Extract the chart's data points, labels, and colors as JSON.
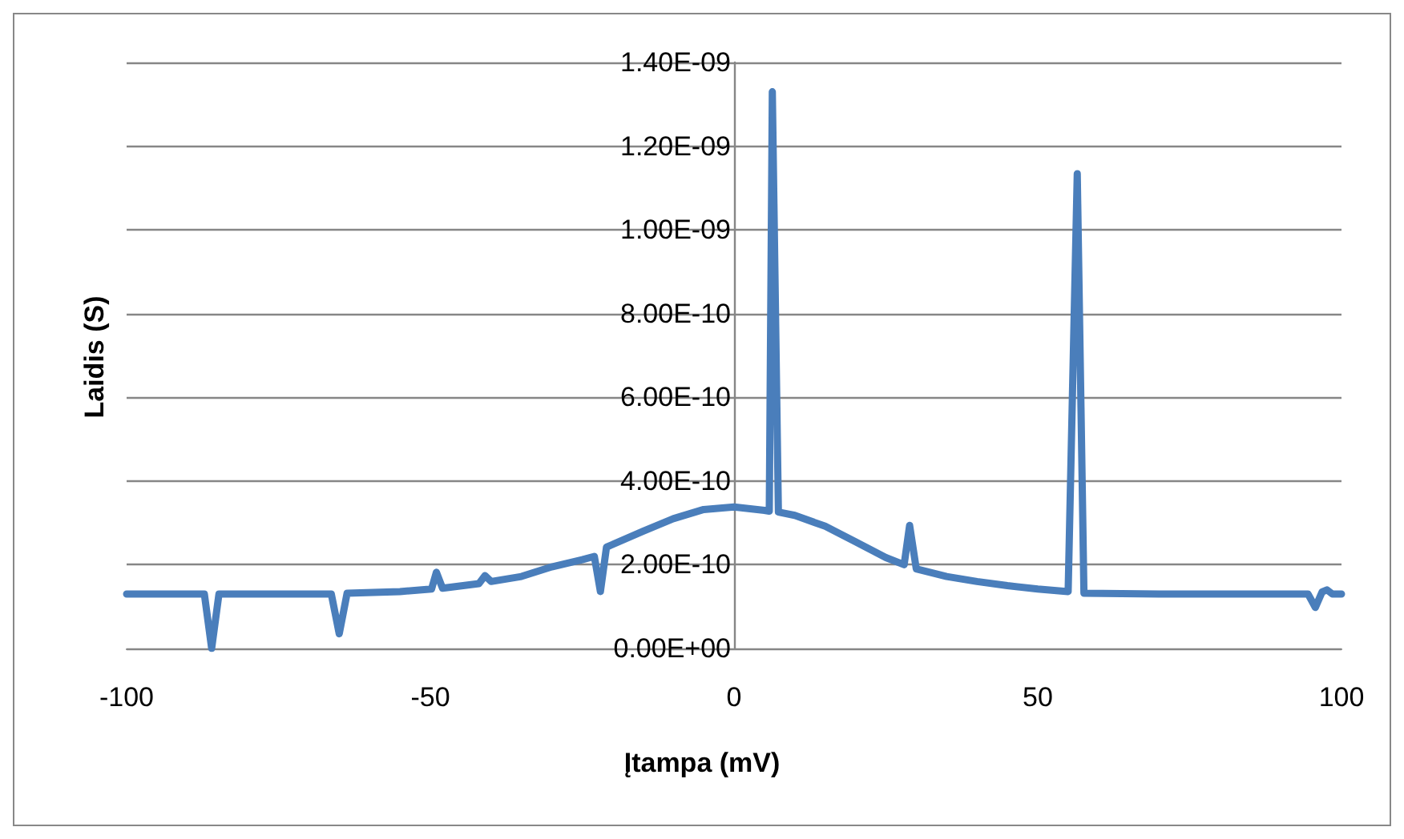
{
  "chart_data": {
    "type": "line",
    "xlabel": "Įtampa (mV)",
    "ylabel": "Laidis (S)",
    "xlim": [
      -100,
      100
    ],
    "xticks": [
      -100,
      -50,
      0,
      50,
      100
    ],
    "ylim": [
      0,
      1.4e-09
    ],
    "yticks": [
      {
        "value": 0,
        "label": "0.00E+00"
      },
      {
        "value": 2e-10,
        "label": "2.00E-10"
      },
      {
        "value": 4e-10,
        "label": "4.00E-10"
      },
      {
        "value": 6e-10,
        "label": "6.00E-10"
      },
      {
        "value": 8e-10,
        "label": "8.00E-10"
      },
      {
        "value": 1e-09,
        "label": "1.00E-09"
      },
      {
        "value": 1.2e-09,
        "label": "1.20E-09"
      },
      {
        "value": 1.4e-09,
        "label": "1.40E-09"
      }
    ],
    "grid": "y",
    "marker": "none",
    "line_style": "solid",
    "series": [
      {
        "color": "#4a7ebb",
        "x": [
          -100,
          -87.2,
          -86,
          -84.8,
          -66.3,
          -65,
          -63.7,
          -55,
          -49.8,
          -49,
          -48,
          -42,
          -41,
          -40,
          -35,
          -30,
          -25,
          -23,
          -22,
          -21,
          -15,
          -10,
          -5,
          0,
          5,
          5.8,
          6.3,
          7.3,
          10,
          15,
          20,
          25,
          28,
          28.9,
          30,
          35,
          40,
          45,
          50,
          55,
          56.5,
          57.6,
          70,
          80,
          94.5,
          95.7,
          96.8,
          97.6,
          98.5,
          100
        ],
        "values": [
          1.3e-10,
          1.3e-10,
          0,
          1.3e-10,
          1.3e-10,
          3.5e-11,
          1.32e-10,
          1.36e-10,
          1.42e-10,
          1.82e-10,
          1.44e-10,
          1.55e-10,
          1.74e-10,
          1.6e-10,
          1.72e-10,
          1.95e-10,
          2.12e-10,
          2.2e-10,
          1.36e-10,
          2.42e-10,
          2.8e-10,
          3.1e-10,
          3.32e-10,
          3.38e-10,
          3.3e-10,
          3.28e-10,
          1.33e-09,
          3.26e-10,
          3.18e-10,
          2.92e-10,
          2.55e-10,
          2.17e-10,
          2e-10,
          2.94e-10,
          1.9e-10,
          1.72e-10,
          1.6e-10,
          1.5e-10,
          1.42e-10,
          1.36e-10,
          1.134e-09,
          1.32e-10,
          1.3e-10,
          1.3e-10,
          1.3e-10,
          9.8e-11,
          1.35e-10,
          1.4e-10,
          1.3e-10,
          1.3e-10
        ]
      }
    ]
  }
}
